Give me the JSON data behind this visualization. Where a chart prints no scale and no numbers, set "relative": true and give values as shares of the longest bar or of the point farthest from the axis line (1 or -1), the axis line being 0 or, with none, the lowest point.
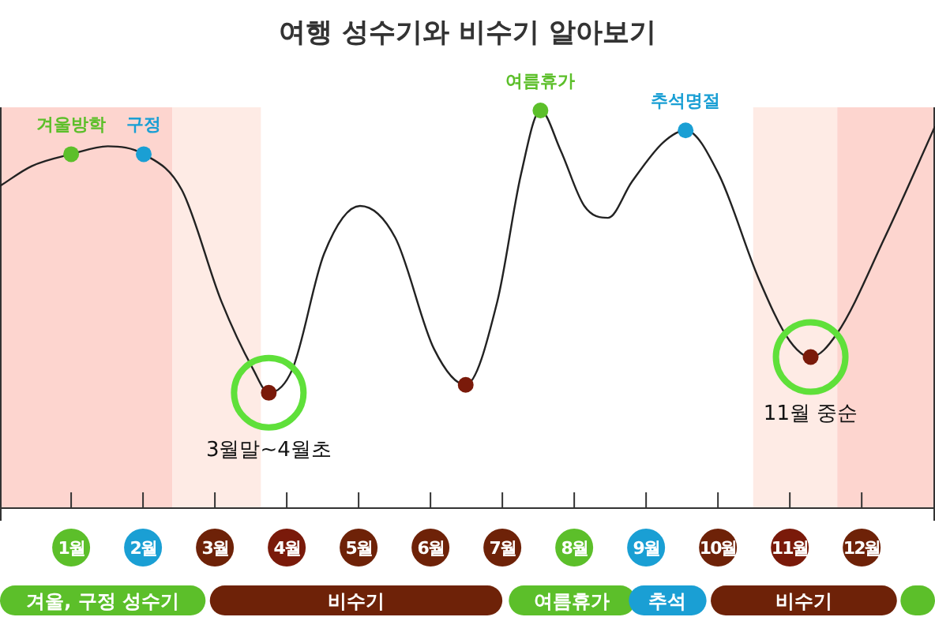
{
  "chart_data": [
    {
      "type": "line",
      "title": "여행 성수기와 비수기 알아보기",
      "relative": true,
      "xlim": [
        0.01,
        13.02
      ],
      "xticks": [
        {
          "value": 1,
          "label": "1월"
        },
        {
          "value": 2,
          "label": "2월"
        },
        {
          "value": 3,
          "label": "3월"
        },
        {
          "value": 4,
          "label": "4월"
        },
        {
          "value": 5,
          "label": "5월"
        },
        {
          "value": 6,
          "label": "6월"
        },
        {
          "value": 7,
          "label": "7월"
        },
        {
          "value": 8,
          "label": "8월"
        },
        {
          "value": 9,
          "label": "9월"
        },
        {
          "value": 10,
          "label": "10월"
        },
        {
          "value": 11,
          "label": "11월"
        },
        {
          "value": 12,
          "label": "12월"
        }
      ],
      "series": [
        {
          "type": "line",
          "color": "#222222",
          "x": [
            0.01,
            0.45,
            1.0,
            1.51,
            2.01,
            2.54,
            3.09,
            3.53,
            3.75,
            4.08,
            4.52,
            5.02,
            5.51,
            6.05,
            6.49,
            6.93,
            7.26,
            7.53,
            7.81,
            8.14,
            8.47,
            8.8,
            9.24,
            9.55,
            10.01,
            10.56,
            11.0,
            11.29,
            11.66,
            12.32,
            13.02
          ],
          "values": [
            0.81,
            0.86,
            0.89,
            0.91,
            0.89,
            0.8,
            0.52,
            0.35,
            0.29,
            0.35,
            0.64,
            0.76,
            0.68,
            0.4,
            0.31,
            0.52,
            0.84,
            1.0,
            0.9,
            0.76,
            0.73,
            0.82,
            0.92,
            0.95,
            0.84,
            0.58,
            0.42,
            0.38,
            0.44,
            0.68,
            0.96
          ]
        },
        {
          "type": "scatter",
          "x": [
            1.0,
            2.01,
            3.75,
            6.49,
            7.53,
            9.55,
            11.29
          ],
          "values": [
            0.89,
            0.89,
            0.29,
            0.31,
            1.0,
            0.95,
            0.38
          ],
          "colors": [
            "#5cbf2a",
            "#1a9fd4",
            "#7a1a0a",
            "#7a1a0a",
            "#5cbf2a",
            "#1a9fd4",
            "#7a1a0a"
          ]
        }
      ],
      "annotations": [
        {
          "text": "겨울방학",
          "x": 1.0,
          "y": 0.89
        },
        {
          "text": "구정",
          "x": 2.01,
          "y": 0.89
        },
        {
          "text": "3월말~4월초",
          "x": 3.75,
          "y": 0.29
        },
        {
          "text": "여름휴가",
          "x": 7.53,
          "y": 1.0
        },
        {
          "text": "추석명절",
          "x": 9.55,
          "y": 0.95
        },
        {
          "text": "11월 중순",
          "x": 11.29,
          "y": 0.38
        }
      ],
      "bands": [
        {
          "axis": "x",
          "from": 0.01,
          "to": 2.41,
          "color": "#fdd5cf"
        },
        {
          "axis": "x",
          "from": 2.41,
          "to": 3.64,
          "color": "#feebe5"
        },
        {
          "axis": "x",
          "from": 10.49,
          "to": 11.66,
          "color": "#feebe5"
        },
        {
          "axis": "x",
          "from": 11.66,
          "to": 13.02,
          "color": "#fdd5cf"
        }
      ]
    },
    {
      "type": "bar",
      "orientation": "horizontal",
      "categories": [
        null
      ],
      "xlim": [
        0.01,
        13.02
      ],
      "series": [
        {
          "color": "#5cbf2a",
          "base": [
            0.01
          ],
          "values": [
            2.86
          ],
          "value_labels": [
            "겨울, 구정 성수기"
          ]
        },
        {
          "color": "#6e2208",
          "base": [
            2.93
          ],
          "values": [
            4.07
          ],
          "value_labels": [
            "비수기"
          ]
        },
        {
          "color": "#5cbf2a",
          "base": [
            7.09
          ],
          "values": [
            1.76
          ],
          "value_labels": [
            "여름휴가"
          ]
        },
        {
          "color": "#1a9fd4",
          "base": [
            8.76
          ],
          "values": [
            1.08
          ],
          "value_labels": [
            "추석"
          ]
        },
        {
          "color": "#6e2208",
          "base": [
            9.9
          ],
          "values": [
            2.59
          ],
          "value_labels": [
            "비수기"
          ]
        },
        {
          "color": "#5cbf2a",
          "base": [
            12.54
          ],
          "values": [
            0.48
          ]
        }
      ]
    }
  ]
}
